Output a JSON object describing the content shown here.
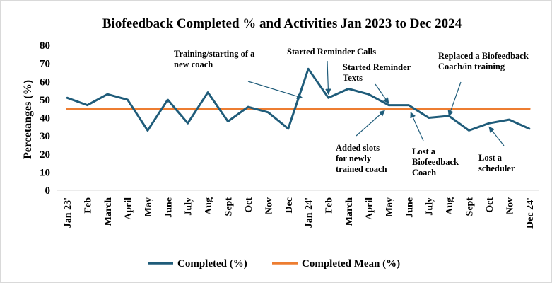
{
  "chart_data": {
    "type": "line",
    "title": "Biofeedback Completed % and Activities Jan 2023 to Dec 2024",
    "ylabel": "Percetanges (%)",
    "xlabel": "",
    "ylim": [
      0,
      80
    ],
    "yticks": [
      "0",
      "10",
      "20",
      "30",
      "40",
      "50",
      "60",
      "70",
      "80"
    ],
    "grid": false,
    "legend_position": "bottom",
    "categories": [
      "Jan 23'",
      "Feb",
      "March",
      "April",
      "May",
      "June",
      "July",
      "Aug",
      "Sept",
      "Oct",
      "Nov",
      "Dec",
      "Jan 24'",
      "Feb",
      "March",
      "April",
      "May",
      "June",
      "July",
      "Aug",
      "Sept",
      "Oct",
      "Nov",
      "Dec 24'"
    ],
    "series": [
      {
        "name": "Completed (%)",
        "color": "#1f5c7a",
        "values": [
          51,
          47,
          53,
          50,
          33,
          50,
          37,
          54,
          38,
          46,
          43,
          34,
          67,
          51,
          56,
          53,
          47,
          47,
          40,
          41,
          33,
          37,
          39,
          34
        ]
      },
      {
        "name": "Completed Mean (%)",
        "color": "#ed7d31",
        "values": [
          45,
          45,
          45,
          45,
          45,
          45,
          45,
          45,
          45,
          45,
          45,
          45,
          45,
          45,
          45,
          45,
          45,
          45,
          45,
          45,
          45,
          45,
          45,
          45
        ]
      }
    ],
    "annotations": [
      {
        "lines": [
          "Training/starting of a",
          "new coach"
        ],
        "target_index": 11.7,
        "target_value": 51
      },
      {
        "lines": [
          "Started Reminder Calls"
        ],
        "target_index": 13,
        "target_value": 53
      },
      {
        "lines": [
          "Started Reminder",
          "Texts"
        ],
        "target_index": 16,
        "target_value": 48
      },
      {
        "lines": [
          "Replaced a Biofeedback",
          "Coach/in training"
        ],
        "target_index": 19,
        "target_value": 41
      },
      {
        "lines": [
          "Added slots",
          "for newly",
          "trained coach"
        ],
        "target_index": 15.8,
        "target_value": 44
      },
      {
        "lines": [
          "Lost a",
          "Biofeedback",
          "Coach"
        ],
        "target_index": 17.1,
        "target_value": 43
      },
      {
        "lines": [
          "Lost a",
          "scheduler"
        ],
        "target_index": 21,
        "target_value": 35
      }
    ]
  }
}
